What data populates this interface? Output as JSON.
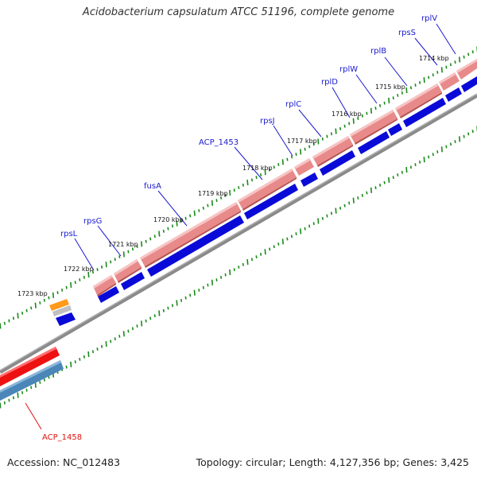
{
  "title": "Acidobacterium capsulatum ATCC 51196, complete genome",
  "footer": {
    "accession": "Accession: NC_012483",
    "summary": "Topology: circular; Length: 4,127,356 bp; Genes: 3,425"
  },
  "colors": {
    "forward_gene": "#e88a8a",
    "forward_gene_dark": "#c85c5c",
    "cds_blue": "#0a0ad8",
    "backbone": "#8c8c8c",
    "tick_dots": "#1a8a1a",
    "gene_label": "#1a1ad0",
    "highlight_label": "#e01010",
    "orange_gene": "#ff9a1a",
    "steel_blue_gene": "#4a86b8",
    "red_gene": "#ee1111"
  },
  "tick_labels": [
    "1714 kbp",
    "1715 kbp",
    "1716 kbp",
    "1717 kbp",
    "1718 kbp",
    "1719 kbp",
    "1720 kbp",
    "1721 kbp",
    "1722 kbp",
    "1723 kbp"
  ],
  "gene_labels": [
    "rplV",
    "rpsS",
    "rplB",
    "rplW",
    "rplD",
    "rplC",
    "rpsJ",
    "ACP_1453",
    "fusA",
    "rpsG",
    "rpsL"
  ],
  "highlight_label": "ACP_1458"
}
